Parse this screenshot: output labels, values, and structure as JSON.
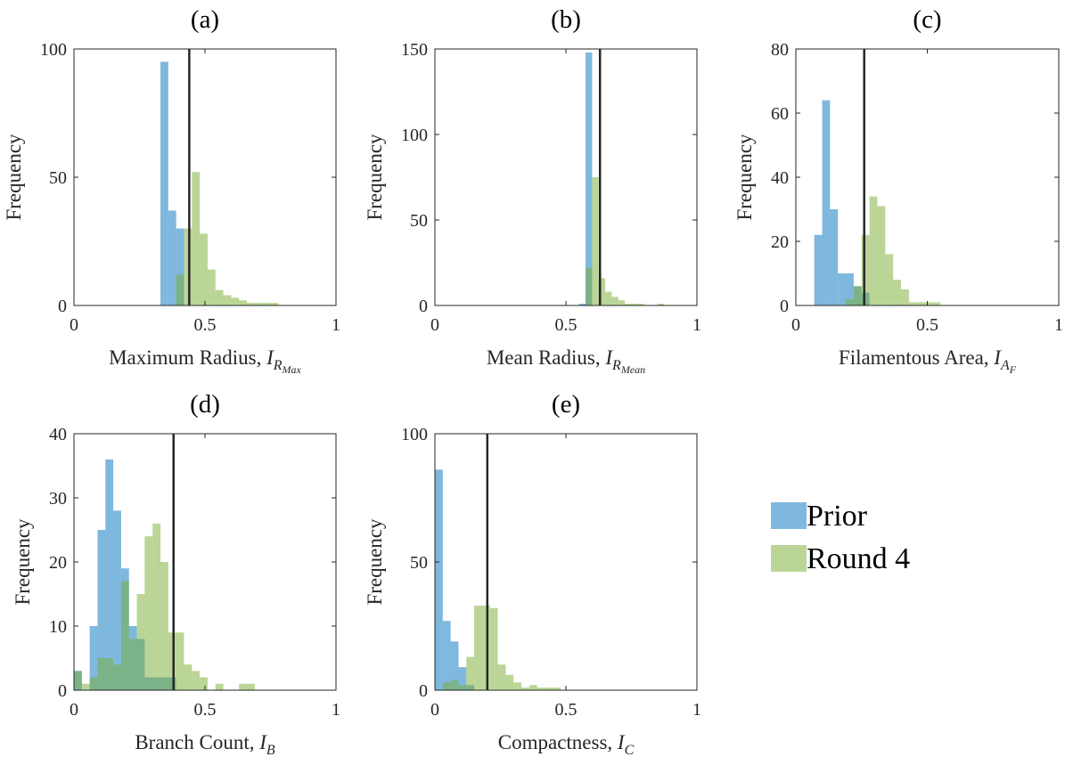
{
  "chart_data": [
    {
      "type": "histogram",
      "title": "(a)",
      "xlabel": {
        "text": "Maximum Radius, ",
        "math": "I",
        "sub": "R",
        "subsub": "Max"
      },
      "ylabel": "Frequency",
      "xlim": [
        0,
        1
      ],
      "xticks": [
        0,
        0.5,
        1
      ],
      "ylim": [
        0,
        100
      ],
      "yticks": [
        0,
        50,
        100
      ],
      "vline": 0.44,
      "series": [
        {
          "name": "Prior",
          "color": "#0072bd",
          "bins": [
            0.33,
            0.36,
            0.39,
            0.42
          ],
          "values": [
            95,
            37,
            30
          ]
        },
        {
          "name": "Round 4",
          "color": "#77ac30",
          "bins": [
            0.39,
            0.42,
            0.45,
            0.48,
            0.51,
            0.54,
            0.57,
            0.6,
            0.63,
            0.66,
            0.69,
            0.72,
            0.75,
            0.78
          ],
          "values": [
            12,
            30,
            52,
            28,
            14,
            6,
            4,
            3,
            2,
            1,
            1,
            1,
            1
          ]
        }
      ]
    },
    {
      "type": "histogram",
      "title": "(b)",
      "xlabel": {
        "text": "Mean Radius, ",
        "math": "I",
        "sub": "R",
        "subsub": "Mean"
      },
      "ylabel": "Frequency",
      "xlim": [
        0,
        1
      ],
      "xticks": [
        0,
        0.5,
        1
      ],
      "ylim": [
        0,
        150
      ],
      "yticks": [
        0,
        50,
        100,
        150
      ],
      "vline": 0.63,
      "series": [
        {
          "color": "#0072bd",
          "bins": [
            0.55,
            0.575,
            0.6
          ],
          "values": [
            1,
            148
          ]
        },
        {
          "color": "#77ac30",
          "bins": [
            0.575,
            0.6,
            0.625,
            0.65,
            0.675,
            0.7,
            0.725,
            0.75,
            0.775,
            0.8,
            0.825,
            0.85,
            0.875
          ],
          "values": [
            22,
            75,
            16,
            8,
            5,
            3,
            1,
            1,
            1,
            0,
            0,
            1
          ]
        }
      ]
    },
    {
      "type": "histogram",
      "title": "(c)",
      "xlabel": {
        "text": "Filamentous Area, ",
        "math": "I",
        "sub": "A",
        "subsub": "F"
      },
      "ylabel": "Frequency",
      "xlim": [
        0,
        1
      ],
      "xticks": [
        0,
        0.5,
        1
      ],
      "ylim": [
        0,
        80
      ],
      "yticks": [
        0,
        20,
        40,
        60,
        80
      ],
      "vline": 0.26,
      "series": [
        {
          "color": "#0072bd",
          "bins": [
            0.07,
            0.1,
            0.13,
            0.16,
            0.19,
            0.22,
            0.25,
            0.28
          ],
          "values": [
            22,
            64,
            30,
            10,
            10,
            6,
            4
          ]
        },
        {
          "color": "#77ac30",
          "bins": [
            0.19,
            0.22,
            0.25,
            0.28,
            0.31,
            0.34,
            0.37,
            0.4,
            0.43,
            0.46,
            0.49,
            0.52,
            0.55
          ],
          "values": [
            2,
            6,
            22,
            34,
            31,
            16,
            8,
            5,
            1,
            1,
            1,
            1
          ]
        }
      ]
    },
    {
      "type": "histogram",
      "title": "(d)",
      "xlabel": {
        "text": "Branch Count, ",
        "math": "I",
        "sub": "B"
      },
      "ylabel": "Frequency",
      "xlim": [
        0,
        1
      ],
      "xticks": [
        0,
        0.5,
        1
      ],
      "ylim": [
        0,
        40
      ],
      "yticks": [
        0,
        10,
        20,
        30,
        40
      ],
      "vline": 0.38,
      "series": [
        {
          "color": "#0072bd",
          "bins": [
            0,
            0.03,
            0.06,
            0.09,
            0.12,
            0.15,
            0.18,
            0.21,
            0.24,
            0.27,
            0.3,
            0.33,
            0.36,
            0.39
          ],
          "values": [
            3,
            0,
            10,
            25,
            36,
            28,
            19,
            10,
            8,
            2,
            2,
            2,
            2
          ]
        },
        {
          "color": "#77ac30",
          "bins": [
            0,
            0.03,
            0.06,
            0.09,
            0.12,
            0.15,
            0.18,
            0.21,
            0.24,
            0.27,
            0.3,
            0.33,
            0.36,
            0.39,
            0.42,
            0.45,
            0.48,
            0.51,
            0.54,
            0.57,
            0.6,
            0.63,
            0.66,
            0.69
          ],
          "values": [
            3,
            1,
            2,
            5,
            5,
            4,
            17,
            8,
            15,
            24,
            26,
            20,
            9,
            9,
            4,
            3,
            2,
            0,
            1,
            0,
            0,
            1,
            1
          ]
        }
      ]
    },
    {
      "type": "histogram",
      "title": "(e)",
      "xlabel": {
        "text": "Compactness, ",
        "math": "I",
        "sub": "C"
      },
      "ylabel": "Frequency",
      "xlim": [
        0,
        1
      ],
      "xticks": [
        0,
        0.5,
        1
      ],
      "ylim": [
        0,
        100
      ],
      "yticks": [
        0,
        50,
        100
      ],
      "vline": 0.2,
      "series": [
        {
          "color": "#0072bd",
          "bins": [
            0,
            0.03,
            0.06,
            0.09,
            0.12,
            0.15
          ],
          "values": [
            86,
            27,
            19,
            9,
            2
          ]
        },
        {
          "color": "#77ac30",
          "bins": [
            0,
            0.03,
            0.06,
            0.09,
            0.12,
            0.15,
            0.18,
            0.21,
            0.24,
            0.27,
            0.3,
            0.33,
            0.36,
            0.39,
            0.42,
            0.45,
            0.48
          ],
          "values": [
            0,
            3,
            4,
            2,
            13,
            33,
            33,
            32,
            10,
            6,
            3,
            1,
            2,
            1,
            1,
            1
          ]
        }
      ]
    }
  ]
}
